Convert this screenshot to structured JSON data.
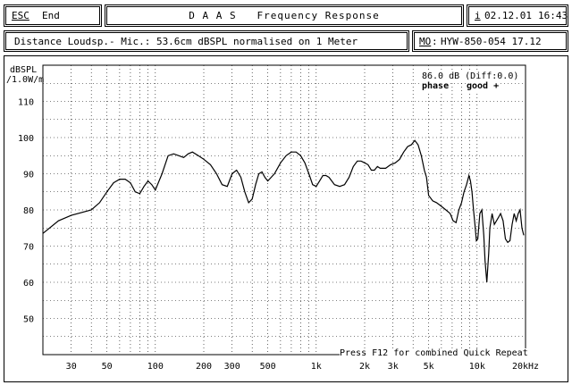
{
  "header": {
    "esc_key": "ESC",
    "end_label": "End",
    "title": "D A A S   Frequency Response",
    "info_key": "i",
    "date": "02.12.01",
    "time": "16:43"
  },
  "subheader": {
    "description": "Distance Loudsp.- Mic.: 53.6cm dBSPL normalised on 1 Meter",
    "model_key": "MO",
    "model": "HYW-850-054 17.12"
  },
  "plot": {
    "y_unit_line1": "dBSPL",
    "y_unit_line2": "/1.0W/m",
    "level_readout": "86.0 dB (Diff:0.0)",
    "phase_label": "phase",
    "phase_value": "good +",
    "footer_hint": "Press F12 for combined Quick Repeat"
  },
  "chart_data": {
    "type": "line",
    "x_scale": "log",
    "xlabel": "",
    "ylabel": "dBSPL /1.0W/m",
    "xlim": [
      20,
      20000
    ],
    "ylim": [
      40,
      120
    ],
    "grid": true,
    "y_ticks": [
      50,
      60,
      70,
      80,
      90,
      100,
      110
    ],
    "x_ticks": [
      {
        "value": 30,
        "label": "30"
      },
      {
        "value": 50,
        "label": "50"
      },
      {
        "value": 100,
        "label": "100"
      },
      {
        "value": 200,
        "label": "200"
      },
      {
        "value": 300,
        "label": "300"
      },
      {
        "value": 500,
        "label": "500"
      },
      {
        "value": 1000,
        "label": "1k"
      },
      {
        "value": 2000,
        "label": "2k"
      },
      {
        "value": 3000,
        "label": "3k"
      },
      {
        "value": 5000,
        "label": "5k"
      },
      {
        "value": 10000,
        "label": "10k"
      },
      {
        "value": 20000,
        "label": "20kHz"
      }
    ],
    "series": [
      {
        "color": "#000000",
        "points": [
          [
            20,
            73.5
          ],
          [
            25,
            77
          ],
          [
            30,
            78.5
          ],
          [
            40,
            80
          ],
          [
            45,
            82
          ],
          [
            50,
            85
          ],
          [
            55,
            87.5
          ],
          [
            60,
            88.5
          ],
          [
            65,
            88.5
          ],
          [
            70,
            87.5
          ],
          [
            75,
            85
          ],
          [
            80,
            84.5
          ],
          [
            85,
            86.5
          ],
          [
            90,
            88
          ],
          [
            95,
            87
          ],
          [
            100,
            85.5
          ],
          [
            110,
            90
          ],
          [
            120,
            95
          ],
          [
            130,
            95.5
          ],
          [
            140,
            95
          ],
          [
            150,
            94.5
          ],
          [
            160,
            95.5
          ],
          [
            170,
            96
          ],
          [
            185,
            95
          ],
          [
            200,
            94
          ],
          [
            220,
            92.5
          ],
          [
            240,
            90
          ],
          [
            260,
            87
          ],
          [
            280,
            86.5
          ],
          [
            300,
            90
          ],
          [
            320,
            91
          ],
          [
            340,
            89
          ],
          [
            360,
            85
          ],
          [
            380,
            82
          ],
          [
            400,
            83
          ],
          [
            420,
            87
          ],
          [
            440,
            90
          ],
          [
            460,
            90.5
          ],
          [
            480,
            89
          ],
          [
            500,
            88
          ],
          [
            550,
            90
          ],
          [
            600,
            93
          ],
          [
            650,
            95
          ],
          [
            700,
            96
          ],
          [
            750,
            96
          ],
          [
            800,
            95
          ],
          [
            850,
            93
          ],
          [
            900,
            90
          ],
          [
            950,
            87
          ],
          [
            1000,
            86.5
          ],
          [
            1050,
            88
          ],
          [
            1100,
            89.5
          ],
          [
            1150,
            89.5
          ],
          [
            1200,
            89
          ],
          [
            1300,
            87
          ],
          [
            1400,
            86.5
          ],
          [
            1500,
            87
          ],
          [
            1600,
            89
          ],
          [
            1700,
            92
          ],
          [
            1800,
            93.5
          ],
          [
            1900,
            93.5
          ],
          [
            2000,
            93
          ],
          [
            2100,
            92.5
          ],
          [
            2200,
            91
          ],
          [
            2300,
            91
          ],
          [
            2400,
            92
          ],
          [
            2500,
            91.5
          ],
          [
            2700,
            91.5
          ],
          [
            2900,
            92.5
          ],
          [
            3100,
            93
          ],
          [
            3300,
            94
          ],
          [
            3500,
            96
          ],
          [
            3700,
            97.5
          ],
          [
            3900,
            98
          ],
          [
            4100,
            99.2
          ],
          [
            4300,
            98
          ],
          [
            4500,
            95
          ],
          [
            4700,
            91
          ],
          [
            4850,
            89
          ],
          [
            5000,
            84
          ],
          [
            5300,
            82.5
          ],
          [
            5600,
            82
          ],
          [
            6000,
            81
          ],
          [
            6400,
            80
          ],
          [
            6800,
            79
          ],
          [
            7100,
            77
          ],
          [
            7400,
            76.5
          ],
          [
            7700,
            80
          ],
          [
            8000,
            82
          ],
          [
            8300,
            85
          ],
          [
            8600,
            87
          ],
          [
            8900,
            89.5
          ],
          [
            9100,
            88
          ],
          [
            9300,
            85
          ],
          [
            9500,
            80
          ],
          [
            9700,
            76
          ],
          [
            9900,
            71.5
          ],
          [
            10100,
            72
          ],
          [
            10400,
            79
          ],
          [
            10700,
            80
          ],
          [
            11000,
            73
          ],
          [
            11200,
            66
          ],
          [
            11500,
            60
          ],
          [
            11800,
            68
          ],
          [
            12000,
            75
          ],
          [
            12400,
            79
          ],
          [
            12800,
            76
          ],
          [
            13200,
            77
          ],
          [
            13600,
            78
          ],
          [
            14000,
            79
          ],
          [
            14500,
            77
          ],
          [
            15000,
            72
          ],
          [
            15500,
            71
          ],
          [
            16000,
            71.5
          ],
          [
            16500,
            76
          ],
          [
            17000,
            79
          ],
          [
            17500,
            77
          ],
          [
            18000,
            79
          ],
          [
            18500,
            80
          ],
          [
            19000,
            75
          ],
          [
            19500,
            73
          ]
        ]
      }
    ]
  }
}
